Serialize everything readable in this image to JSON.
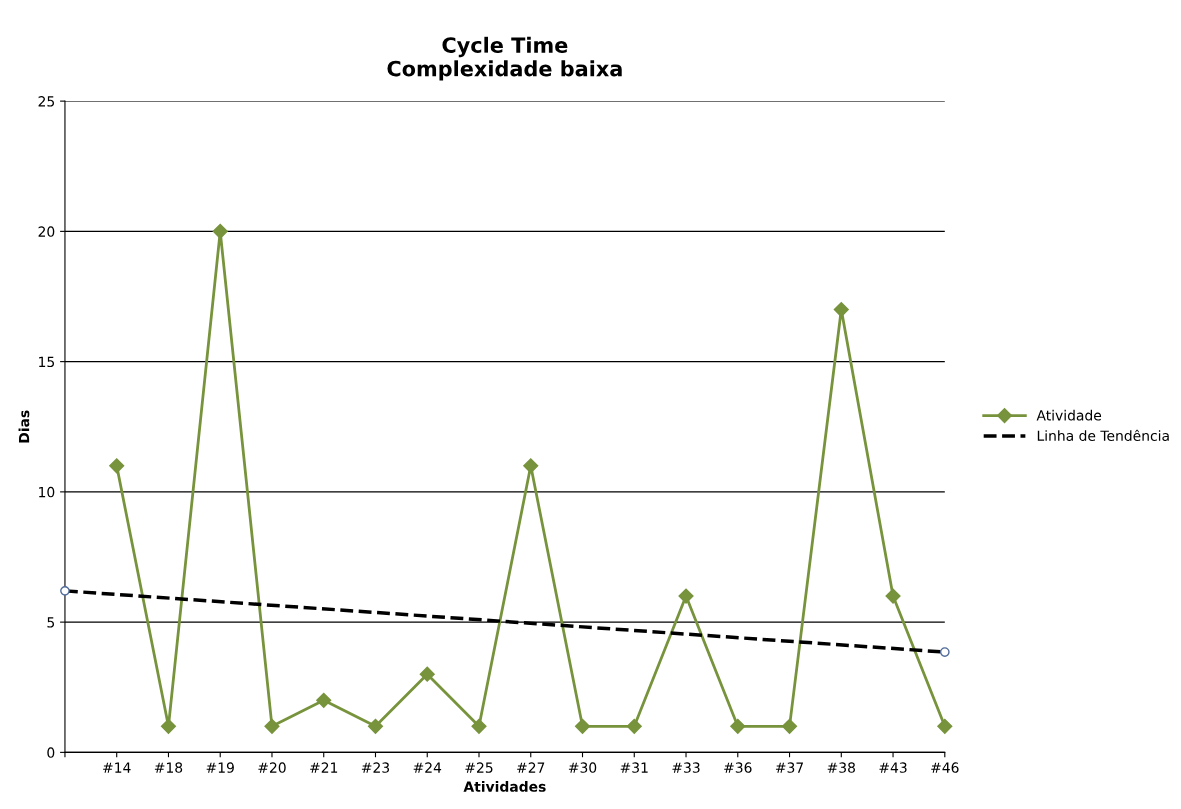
{
  "chart_data": {
    "type": "line",
    "title": "Cycle Time\nComplexidade baixa",
    "xlabel": "Atividades",
    "ylabel": "Dias",
    "categories": [
      null,
      "#14",
      "#18",
      "#19",
      "#20",
      "#21",
      "#23",
      "#24",
      "#25",
      "#27",
      "#30",
      "#31",
      "#33",
      "#36",
      "#37",
      "#38",
      "#43",
      "#46"
    ],
    "series": [
      {
        "name": "Atividade",
        "color": "#77933c",
        "marker": "diamond",
        "line_style": "solid",
        "values": [
          null,
          11,
          1,
          20,
          1,
          2,
          1,
          3,
          1,
          11,
          1,
          1,
          6,
          1,
          1,
          17,
          6,
          1
        ]
      },
      {
        "name": "Linha de Tendência",
        "color": "#000000",
        "marker": "circle",
        "line_style": "dashed",
        "values": [
          6.2,
          null,
          null,
          null,
          null,
          null,
          null,
          null,
          null,
          null,
          null,
          null,
          null,
          null,
          null,
          null,
          null,
          3.85
        ]
      }
    ],
    "ylim": [
      0,
      25
    ],
    "yticks": [
      0,
      5,
      10,
      15,
      20,
      25
    ],
    "grid": "y",
    "legend": "right"
  }
}
